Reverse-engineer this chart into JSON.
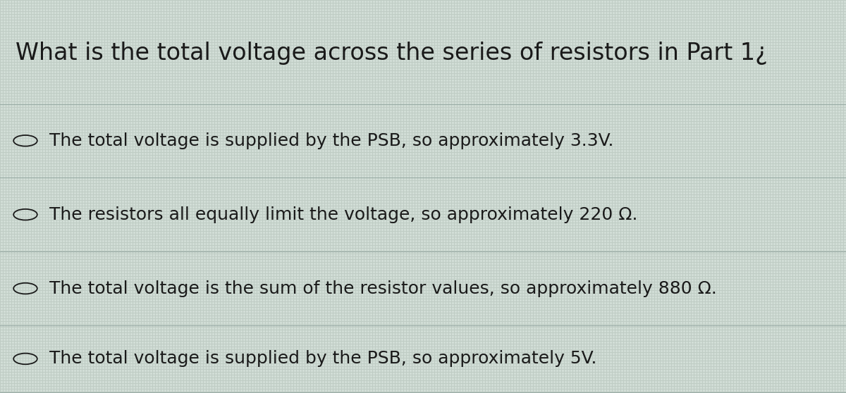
{
  "title": "What is the total voltage across the series of resistors in Part 1¿",
  "title_display": "What is the total voltage across the series of resistors in Part 1?",
  "options": [
    "The total voltage is supplied by the PSB, so approximately 3.3V.",
    "The resistors all equally limit the voltage, so approximately 220 Ω.",
    "The total voltage is the sum of the resistor values, so approximately 880 Ω.",
    "The total voltage is supplied by the PSB, so approximately 5V."
  ],
  "bg_color_light": "#d4ddd8",
  "bg_color_dark": "#b8c4be",
  "text_color": "#1a1a1a",
  "title_fontsize": 24,
  "option_fontsize": 18,
  "line_color": "#9aaca5",
  "figsize": [
    12.0,
    5.58
  ],
  "dpi": 100
}
